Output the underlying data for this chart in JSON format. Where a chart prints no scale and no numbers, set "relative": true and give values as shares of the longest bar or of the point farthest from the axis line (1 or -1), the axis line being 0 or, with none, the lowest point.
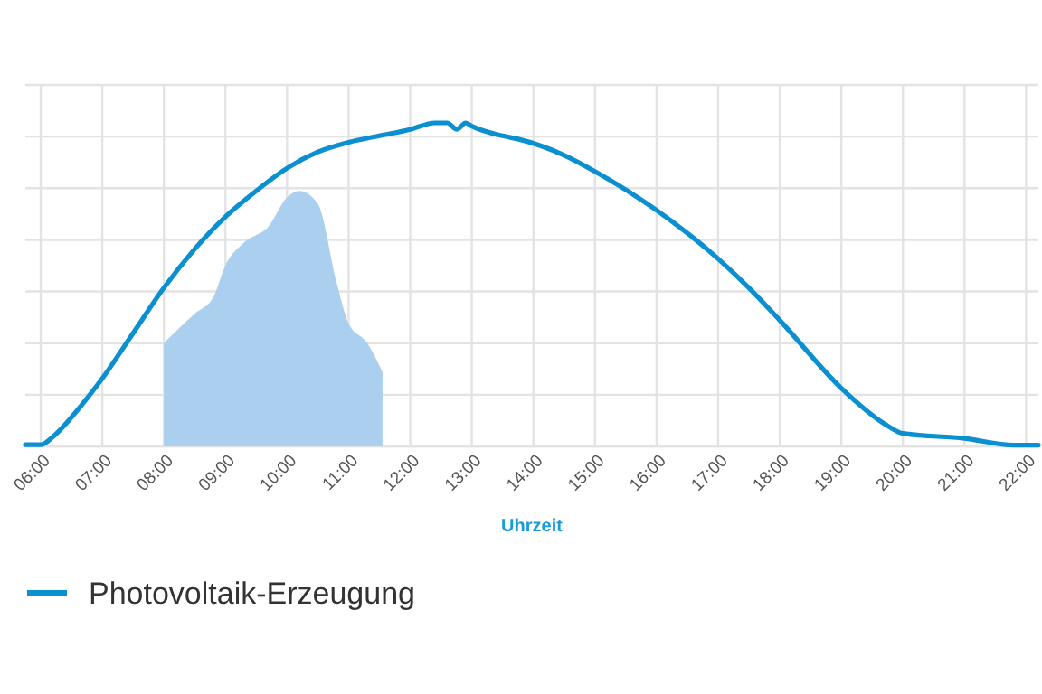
{
  "chart_data": {
    "type": "line",
    "relative": true,
    "xlabel": "Uhrzeit",
    "grid": true,
    "legend": "bottom",
    "xlim": [
      5.75,
      22.2
    ],
    "xticks": [
      {
        "value": 6,
        "label": "06:00"
      },
      {
        "value": 7,
        "label": "07:00"
      },
      {
        "value": 8,
        "label": "08:00"
      },
      {
        "value": 9,
        "label": "09:00"
      },
      {
        "value": 10,
        "label": "10:00"
      },
      {
        "value": 11,
        "label": "11:00"
      },
      {
        "value": 12,
        "label": "12:00"
      },
      {
        "value": 13,
        "label": "13:00"
      },
      {
        "value": 14,
        "label": "14:00"
      },
      {
        "value": 15,
        "label": "15:00"
      },
      {
        "value": 16,
        "label": "16:00"
      },
      {
        "value": 17,
        "label": "17:00"
      },
      {
        "value": 18,
        "label": "18:00"
      },
      {
        "value": 19,
        "label": "19:00"
      },
      {
        "value": 20,
        "label": "20:00"
      },
      {
        "value": 21,
        "label": "21:00"
      },
      {
        "value": 22,
        "label": "22:00"
      }
    ],
    "series": [
      {
        "type": "area",
        "color": "#abcfef",
        "x": [
          8.0,
          8.5,
          8.8,
          9.0,
          9.3,
          9.7,
          10.0,
          10.2,
          10.5,
          10.8,
          11.0,
          11.3,
          11.55
        ],
        "values": [
          0.32,
          0.41,
          0.46,
          0.56,
          0.63,
          0.68,
          0.77,
          0.79,
          0.75,
          0.51,
          0.38,
          0.32,
          0.23
        ]
      },
      {
        "name": "Photovoltaik-Erzeugung",
        "color": "#0a8fd0",
        "x": [
          5.75,
          6.0,
          6.2,
          6.5,
          6.8,
          7.0,
          7.5,
          8.0,
          8.5,
          9.0,
          9.5,
          10.0,
          10.5,
          11.0,
          11.5,
          12.0,
          12.4,
          12.6,
          12.76,
          12.9,
          13.0,
          13.5,
          13.75,
          14.5,
          15.0,
          16.0,
          17.0,
          17.5,
          18.0,
          19.0,
          19.7,
          20.0,
          21.0,
          21.8,
          22.2
        ],
        "values": [
          0.005,
          0.005,
          0.03,
          0.09,
          0.16,
          0.21,
          0.35,
          0.49,
          0.61,
          0.71,
          0.79,
          0.86,
          0.91,
          0.94,
          0.96,
          0.98,
          1,
          1,
          0.98,
          1,
          0.99,
          0.96,
          0.95,
          0.9,
          0.85,
          0.73,
          0.58,
          0.49,
          0.39,
          0.18,
          0.07,
          0.04,
          0.025,
          0.004,
          0.004
        ]
      }
    ]
  }
}
